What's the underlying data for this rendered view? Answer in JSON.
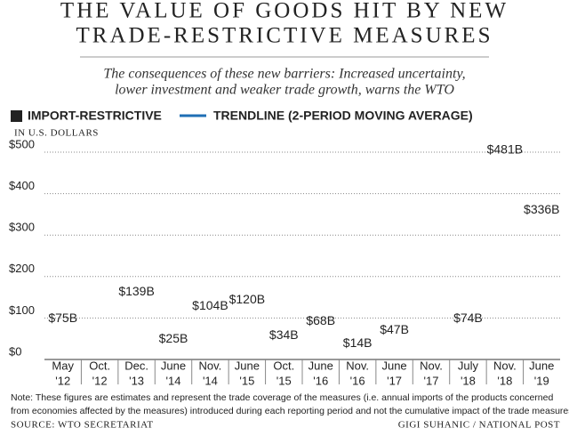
{
  "chart_data": {
    "type": "bar",
    "title": [
      "THE VALUE OF GOODS HIT BY NEW",
      "TRADE-RESTRICTIVE MEASURES"
    ],
    "subtitle": [
      "The consequences of these new barriers: Increased uncertainty,",
      "lower investment and weaker trade growth, warns the WTO"
    ],
    "y_label": "IN U.S. DOLLARS",
    "categories": [
      [
        "May",
        "'12"
      ],
      [
        "Oct.",
        "'12"
      ],
      [
        "Dec.",
        "'13"
      ],
      [
        "June",
        "'14"
      ],
      [
        "Nov.",
        "'14"
      ],
      [
        "June",
        "'15"
      ],
      [
        "Oct.",
        "'15"
      ],
      [
        "June",
        "'16"
      ],
      [
        "Nov.",
        "'16"
      ],
      [
        "June",
        "'17"
      ],
      [
        "Nov.",
        "'17"
      ],
      [
        "July",
        "'18"
      ],
      [
        "Nov.",
        "'18"
      ],
      [
        "June",
        "'19"
      ]
    ],
    "series": [
      {
        "name": "IMPORT-RESTRICTIVE",
        "color": "#222222",
        "values": [
          75,
          null,
          139,
          25,
          104,
          120,
          34,
          68,
          14,
          47,
          null,
          74,
          481,
          336
        ],
        "value_labels": [
          "$75B",
          null,
          "$139B",
          "$25B",
          "$104B",
          "$120B",
          "$34B",
          "$68B",
          "$14B",
          "$47B",
          null,
          "$74B",
          "$481B",
          "$336B"
        ]
      },
      {
        "name": "TRENDLINE (2-PERIOD MOVING AVERAGE)",
        "color": "#1f6fb5"
      }
    ],
    "ylim": [
      0,
      500
    ],
    "yticks": [
      {
        "value": 0,
        "label": "$0"
      },
      {
        "value": 100,
        "label": "$100"
      },
      {
        "value": 200,
        "label": "$200"
      },
      {
        "value": 300,
        "label": "$300"
      },
      {
        "value": 400,
        "label": "$400"
      },
      {
        "value": 500,
        "label": "$500"
      }
    ],
    "grid": true,
    "note": [
      "Note: These figures are estimates and represent the trade coverage of the measures (i.e. annual imports of the products concerned",
      "from economies affected by the measures) introduced during each reporting period and not the cumulative impact of the trade measures."
    ],
    "source": "SOURCE: WTO SECRETARIAT",
    "credit": "GIGI SUHANIC / NATIONAL POST"
  }
}
